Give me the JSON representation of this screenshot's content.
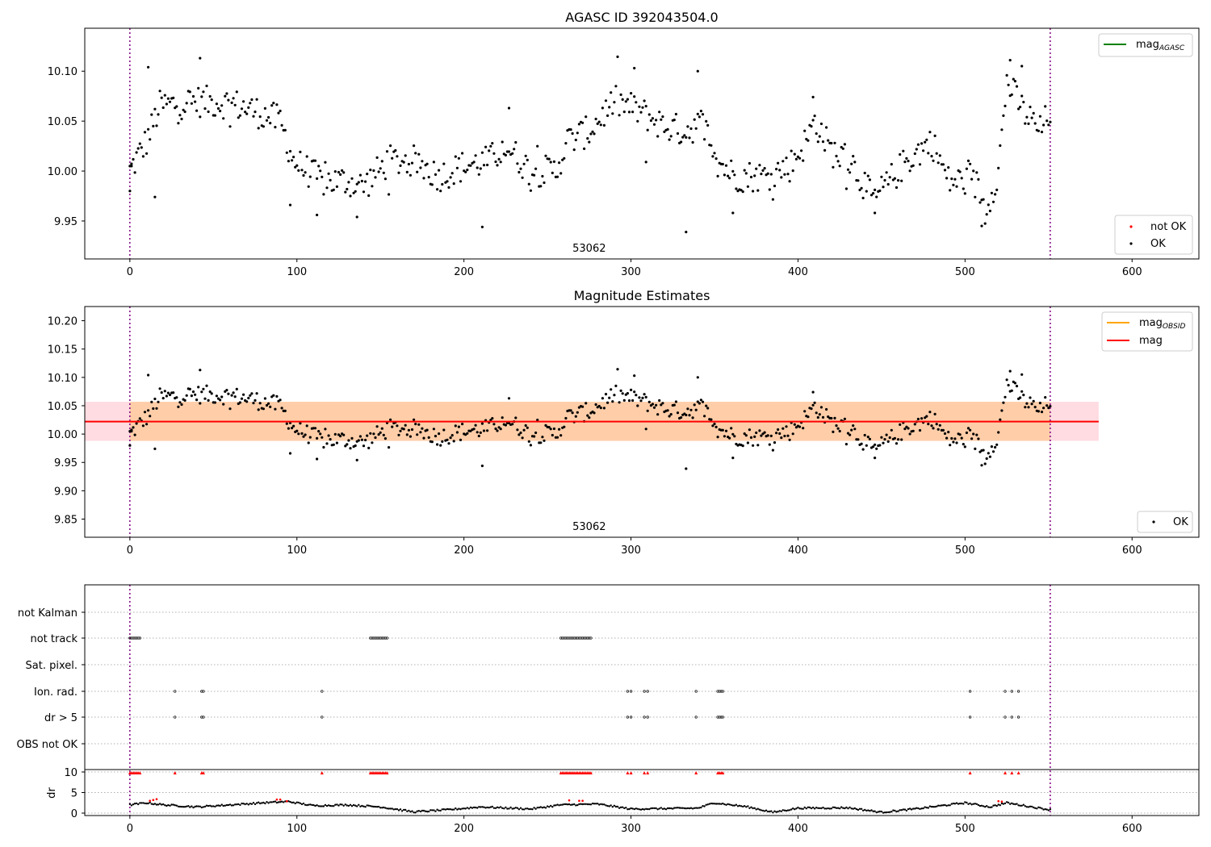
{
  "chart_data": [
    {
      "type": "scatter",
      "title": "AGASC ID 392043504.0",
      "xlim": [
        -27,
        640
      ],
      "ylim": [
        9.912,
        10.143
      ],
      "x_ticks": [
        0,
        100,
        200,
        300,
        400,
        500,
        600
      ],
      "y_ticks": [
        9.95,
        10.0,
        10.05,
        10.1
      ],
      "obsid_text": "53062",
      "obsid_x": 275,
      "obs_boundaries": [
        0,
        551
      ],
      "legend_lines": [
        {
          "label_main": "mag",
          "label_sub": "AGASC",
          "color": "#008000"
        }
      ],
      "legend_points": [
        {
          "label": "not OK",
          "color": "#ff0000"
        },
        {
          "label": "OK",
          "color": "#000000"
        }
      ],
      "series_ok_generated": {
        "n_points": 552,
        "x_range": [
          0,
          551
        ]
      },
      "series_not_ok": {
        "x": [],
        "y": []
      }
    },
    {
      "type": "scatter",
      "title": "Magnitude Estimates",
      "xlim": [
        -27,
        640
      ],
      "ylim": [
        9.818,
        10.225
      ],
      "x_ticks": [
        0,
        100,
        200,
        300,
        400,
        500,
        600
      ],
      "y_ticks": [
        9.85,
        9.9,
        9.95,
        10.0,
        10.05,
        10.1,
        10.15,
        10.2
      ],
      "obsid_text": "53062",
      "obsid_x": 275,
      "obs_boundaries": [
        0,
        551
      ],
      "mag": {
        "value": 10.022,
        "band": [
          9.988,
          10.057
        ],
        "x_range": [
          -27,
          580
        ],
        "color": "#ff0000"
      },
      "mag_obsid": {
        "band": [
          9.988,
          10.057
        ],
        "x_range": [
          0,
          551
        ],
        "color": "#ffa500"
      },
      "legend_lines": [
        {
          "label_main": "mag",
          "label_sub": "OBSID",
          "color": "#ffa500"
        },
        {
          "label_main": "mag",
          "label_sub": "",
          "color": "#ff0000"
        }
      ],
      "legend_points": [
        {
          "label": "OK",
          "color": "#000000"
        }
      ]
    },
    {
      "type": "scatter",
      "title": "",
      "xlim": [
        -27,
        640
      ],
      "x_ticks": [
        0,
        100,
        200,
        300,
        400,
        500,
        600
      ],
      "flag_labels": [
        "not Kalman",
        "not track",
        "Sat. pixel.",
        "Ion. rad.",
        "dr > 5",
        "OBS not OK"
      ],
      "flags": {
        "not track": [
          [
            0,
            6
          ],
          [
            144,
            154
          ],
          [
            258,
            276
          ]
        ],
        "Ion. rad.": [
          27,
          43,
          44,
          115,
          298,
          300,
          308,
          310,
          339,
          352,
          353,
          354,
          355,
          503,
          524,
          528,
          532
        ],
        "dr > 5": [
          27,
          43,
          44,
          115,
          298,
          300,
          308,
          310,
          339,
          352,
          353,
          354,
          355,
          503,
          524,
          528,
          532
        ]
      },
      "dr_ylabel": "dr",
      "dr_ylim": [
        -0.5,
        10.5
      ],
      "dr_ticks": [
        0,
        5,
        10
      ],
      "dr_ok_generated": {
        "n_points": 552,
        "x_range": [
          0,
          551
        ]
      },
      "dr_over_limit_x": [
        0,
        1,
        2,
        3,
        4,
        5,
        6,
        27,
        43,
        44,
        115,
        144,
        145,
        146,
        147,
        148,
        149,
        150,
        151,
        152,
        153,
        154,
        258,
        259,
        260,
        261,
        262,
        263,
        264,
        265,
        266,
        267,
        268,
        269,
        270,
        271,
        272,
        273,
        274,
        275,
        276,
        298,
        300,
        308,
        310,
        339,
        352,
        353,
        354,
        355,
        503,
        524,
        528,
        532
      ],
      "dr_mid_red": [
        [
          12,
          3
        ],
        [
          14,
          3.2
        ],
        [
          16,
          3.4
        ],
        [
          88,
          3.3
        ],
        [
          90,
          3.3
        ],
        [
          94,
          2.9
        ],
        [
          263,
          3.1
        ],
        [
          269,
          3.0
        ],
        [
          271,
          3.0
        ],
        [
          520,
          2.9
        ],
        [
          522,
          2.8
        ]
      ],
      "obs_boundaries": [
        0,
        551
      ]
    }
  ]
}
